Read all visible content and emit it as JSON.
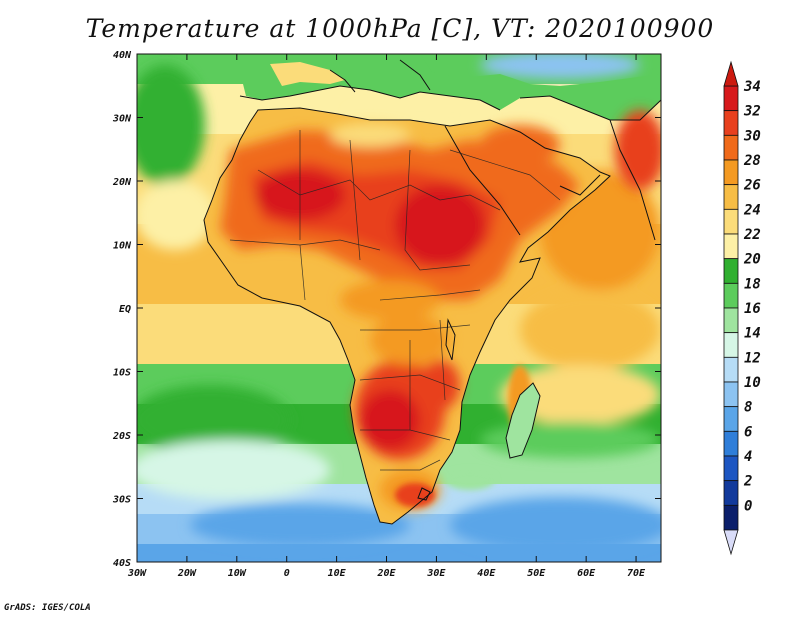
{
  "title": "Temperature at 1000hPa [C], VT: 2020100900",
  "credit": "GrADS: IGES/COLA",
  "map": {
    "lat_labels": [
      "40N",
      "30N",
      "20N",
      "10N",
      "EQ",
      "10S",
      "20S",
      "30S",
      "40S"
    ],
    "lon_labels": [
      "30W",
      "20W",
      "10W",
      "0",
      "10E",
      "20E",
      "30E",
      "40E",
      "50E",
      "60E",
      "70E"
    ],
    "lat_range": [
      -40,
      40
    ],
    "lon_range": [
      -30,
      75
    ]
  },
  "colorbar": {
    "labels": [
      "34",
      "32",
      "30",
      "28",
      "26",
      "24",
      "22",
      "20",
      "18",
      "16",
      "14",
      "12",
      "10",
      "8",
      "6",
      "4",
      "2",
      "0"
    ],
    "colors": [
      "#d7191c",
      "#e8401e",
      "#f06a1a",
      "#f49a22",
      "#f7bd45",
      "#fbdc7a",
      "#fdf0a6",
      "#30b030",
      "#5ccc5c",
      "#9fe49f",
      "#d6f6e6",
      "#b6dcf6",
      "#8cc3f1",
      "#5aa5e8",
      "#2f7ed9",
      "#1d56c2",
      "#123a9c",
      "#0b1f6b"
    ],
    "tip_top": "#cc1a10",
    "tip_bottom": "#d9dcf8"
  }
}
